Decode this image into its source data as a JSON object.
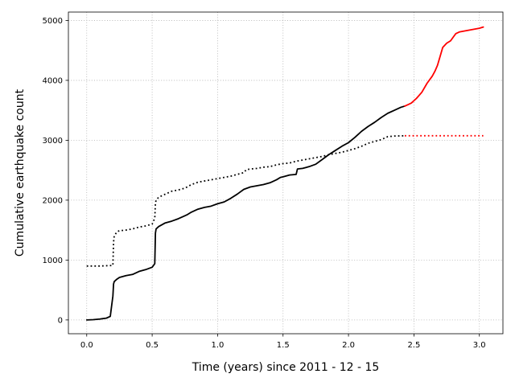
{
  "chart_data": {
    "type": "line",
    "title": "",
    "xlabel": "Time (years) since 2011 - 12 - 15",
    "ylabel": "Cumulative earthquake count",
    "xlim": [
      -0.14,
      3.18
    ],
    "ylim": [
      -230,
      5140
    ],
    "xticks": [
      0.0,
      0.5,
      1.0,
      1.5,
      2.0,
      2.5,
      3.0
    ],
    "xtick_labels": [
      "0.0",
      "0.5",
      "1.0",
      "1.5",
      "2.0",
      "2.5",
      "3.0"
    ],
    "yticks": [
      0,
      1000,
      2000,
      3000,
      4000,
      5000
    ],
    "ytick_labels": [
      "0",
      "1000",
      "2000",
      "3000",
      "4000",
      "5000"
    ],
    "grid": true,
    "series": [
      {
        "style": "solid",
        "color": "#000000",
        "x": [
          0.0,
          0.05,
          0.1,
          0.15,
          0.18,
          0.2,
          0.205,
          0.21,
          0.23,
          0.25,
          0.3,
          0.35,
          0.4,
          0.45,
          0.5,
          0.52,
          0.525,
          0.53,
          0.55,
          0.6,
          0.65,
          0.7,
          0.75,
          0.77,
          0.8,
          0.85,
          0.9,
          0.95,
          1.0,
          1.05,
          1.1,
          1.15,
          1.2,
          1.25,
          1.3,
          1.35,
          1.4,
          1.45,
          1.48,
          1.5,
          1.55,
          1.6,
          1.61,
          1.65,
          1.7,
          1.75,
          1.8,
          1.85,
          1.9,
          1.95,
          2.0,
          2.05,
          2.1,
          2.15,
          2.2,
          2.25,
          2.3,
          2.35,
          2.4,
          2.43
        ],
        "y": [
          0,
          5,
          15,
          30,
          60,
          400,
          600,
          640,
          680,
          710,
          740,
          760,
          810,
          840,
          880,
          940,
          1450,
          1520,
          1560,
          1620,
          1650,
          1690,
          1740,
          1760,
          1800,
          1850,
          1880,
          1900,
          1940,
          1970,
          2030,
          2100,
          2180,
          2220,
          2240,
          2260,
          2290,
          2340,
          2380,
          2390,
          2420,
          2430,
          2520,
          2530,
          2560,
          2600,
          2680,
          2760,
          2830,
          2900,
          2960,
          3050,
          3150,
          3230,
          3300,
          3380,
          3450,
          3500,
          3550,
          3570
        ]
      },
      {
        "style": "solid",
        "color": "#ff0000",
        "x": [
          2.43,
          2.48,
          2.52,
          2.56,
          2.6,
          2.64,
          2.66,
          2.68,
          2.7,
          2.72,
          2.75,
          2.78,
          2.8,
          2.82,
          2.85,
          2.9,
          2.95,
          3.0,
          3.03
        ],
        "y": [
          3570,
          3620,
          3700,
          3800,
          3950,
          4070,
          4150,
          4250,
          4400,
          4550,
          4620,
          4660,
          4720,
          4780,
          4810,
          4830,
          4850,
          4870,
          4890
        ]
      },
      {
        "style": "dotted",
        "color": "#000000",
        "x": [
          0.0,
          0.05,
          0.1,
          0.15,
          0.2,
          0.205,
          0.21,
          0.23,
          0.25,
          0.3,
          0.35,
          0.4,
          0.45,
          0.5,
          0.52,
          0.525,
          0.53,
          0.55,
          0.6,
          0.65,
          0.7,
          0.75,
          0.8,
          0.85,
          0.9,
          0.95,
          1.0,
          1.05,
          1.1,
          1.15,
          1.2,
          1.22,
          1.25,
          1.3,
          1.35,
          1.4,
          1.45,
          1.5,
          1.55,
          1.6,
          1.65,
          1.7,
          1.75,
          1.8,
          1.85,
          1.9,
          1.95,
          2.0,
          2.05,
          2.1,
          2.15,
          2.2,
          2.25,
          2.3,
          2.35,
          2.43
        ],
        "y": [
          900,
          900,
          900,
          905,
          910,
          1300,
          1400,
          1470,
          1490,
          1500,
          1520,
          1550,
          1570,
          1600,
          1700,
          1950,
          2000,
          2050,
          2100,
          2150,
          2170,
          2200,
          2260,
          2300,
          2320,
          2340,
          2360,
          2380,
          2400,
          2430,
          2460,
          2510,
          2520,
          2530,
          2550,
          2560,
          2590,
          2610,
          2620,
          2650,
          2670,
          2690,
          2710,
          2730,
          2760,
          2780,
          2800,
          2830,
          2860,
          2900,
          2950,
          2980,
          3010,
          3060,
          3070,
          3075
        ]
      },
      {
        "style": "dotted",
        "color": "#ff0000",
        "x": [
          2.43,
          3.03
        ],
        "y": [
          3075,
          3075
        ]
      }
    ]
  }
}
